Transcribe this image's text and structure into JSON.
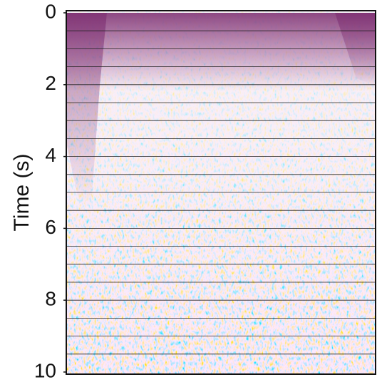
{
  "chart_data": {
    "type": "seismic",
    "ylabel": "Time (s)",
    "ylim": [
      0,
      10
    ],
    "yticks": [
      0,
      2,
      4,
      6,
      8,
      10
    ],
    "grid_lines": [
      0.5,
      1,
      1.5,
      2,
      2.5,
      3,
      3.5,
      4,
      4.5,
      5,
      5.5,
      6,
      6.5,
      7,
      7.5,
      8,
      8.5,
      9,
      9.5
    ]
  }
}
